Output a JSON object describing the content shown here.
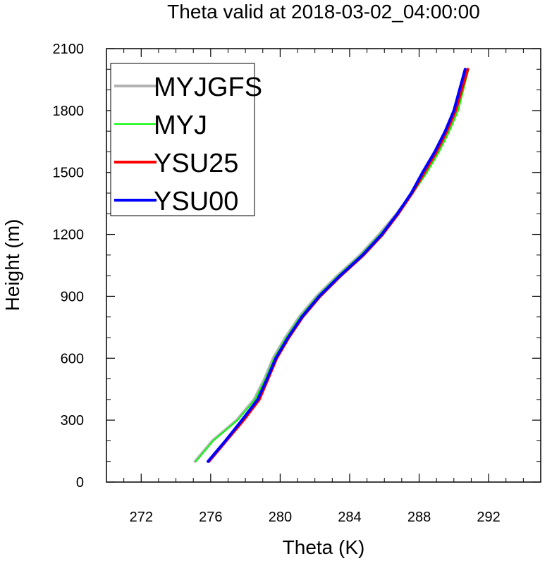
{
  "chart_data": {
    "type": "line",
    "title": "Theta valid at 2018-03-02_04:00:00",
    "xlabel": "Theta (K)",
    "ylabel": "Height (m)",
    "xlim": [
      270,
      295
    ],
    "ylim": [
      0,
      2100
    ],
    "xticks": [
      272,
      276,
      280,
      284,
      288,
      292
    ],
    "xtick_labels": [
      "272",
      "276",
      "280",
      "284",
      "288",
      "292"
    ],
    "yticks": [
      0,
      300,
      600,
      900,
      1200,
      1500,
      1800,
      2100
    ],
    "ytick_labels": [
      "0",
      "300",
      "600",
      "900",
      "1200",
      "1500",
      "1800",
      "2100"
    ],
    "x_minor_step": 1,
    "y_minor_step": 100,
    "grid": false,
    "legend_position": "top-left",
    "series": [
      {
        "name": "MYJGFS",
        "color": "#b3b3b3",
        "x": [
          275.1,
          276.1,
          277.5,
          278.5,
          279.1,
          279.6,
          280.3,
          281.1,
          282.1,
          283.3,
          284.6,
          285.7,
          286.7,
          287.6,
          288.4,
          289.1,
          289.7,
          290.2,
          290.8
        ],
        "y": [
          100,
          200,
          300,
          400,
          500,
          600,
          700,
          800,
          900,
          1000,
          1100,
          1200,
          1300,
          1400,
          1500,
          1600,
          1700,
          1800,
          2000
        ]
      },
      {
        "name": "MYJ",
        "color": "#00ff00",
        "x": [
          275.15,
          276.15,
          277.55,
          278.55,
          279.15,
          279.65,
          280.35,
          281.15,
          282.15,
          283.35,
          284.65,
          285.75,
          286.75,
          287.65,
          288.45,
          289.15,
          289.75,
          290.25,
          290.85
        ],
        "y": [
          100,
          200,
          300,
          400,
          500,
          600,
          700,
          800,
          900,
          1000,
          1100,
          1200,
          1300,
          1400,
          1500,
          1600,
          1700,
          1800,
          2000
        ]
      },
      {
        "name": "YSU25",
        "color": "#ff0000",
        "x": [
          275.9,
          276.9,
          277.9,
          278.8,
          279.3,
          279.8,
          280.5,
          281.3,
          282.3,
          283.5,
          284.8,
          285.9,
          286.8,
          287.6,
          288.3,
          289.0,
          289.6,
          290.1,
          290.8
        ],
        "y": [
          100,
          200,
          300,
          400,
          500,
          600,
          700,
          800,
          900,
          1000,
          1100,
          1200,
          1300,
          1400,
          1500,
          1600,
          1700,
          1800,
          2000
        ]
      },
      {
        "name": "YSU00",
        "color": "#0000ff",
        "x": [
          275.85,
          276.85,
          277.8,
          278.7,
          279.25,
          279.75,
          280.45,
          281.25,
          282.25,
          283.45,
          284.75,
          285.85,
          286.75,
          287.55,
          288.2,
          288.9,
          289.5,
          290.0,
          290.65
        ],
        "y": [
          100,
          200,
          300,
          400,
          500,
          600,
          700,
          800,
          900,
          1000,
          1100,
          1200,
          1300,
          1400,
          1500,
          1600,
          1700,
          1800,
          2000
        ]
      }
    ]
  }
}
